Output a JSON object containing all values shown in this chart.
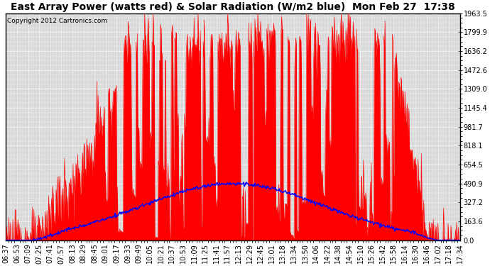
{
  "title": "East Array Power (watts red) & Solar Radiation (W/m2 blue)  Mon Feb 27  17:38",
  "copyright": "Copyright 2012 Cartronics.com",
  "y_ticks": [
    0.0,
    163.6,
    327.2,
    490.9,
    654.5,
    818.1,
    981.7,
    1145.4,
    1309.0,
    1472.6,
    1636.2,
    1799.9,
    1963.5
  ],
  "y_labels": [
    "0.0",
    "163.6",
    "327.2",
    "490.9",
    "654.5",
    "818.1",
    "981.7",
    "1145.4",
    "1309.0",
    "1472.6",
    "1636.2",
    "1799.9",
    "1963.5"
  ],
  "ylim": [
    0,
    1963.5
  ],
  "x_labels": [
    "06:37",
    "06:53",
    "07:09",
    "07:25",
    "07:41",
    "07:57",
    "08:13",
    "08:29",
    "08:45",
    "09:01",
    "09:17",
    "09:33",
    "09:49",
    "10:05",
    "10:21",
    "10:37",
    "10:53",
    "11:09",
    "11:25",
    "11:41",
    "11:57",
    "12:13",
    "12:29",
    "12:45",
    "13:01",
    "13:18",
    "13:34",
    "13:50",
    "14:06",
    "14:22",
    "14:38",
    "14:54",
    "15:10",
    "15:26",
    "15:42",
    "15:58",
    "16:14",
    "16:30",
    "16:46",
    "17:02",
    "17:18",
    "17:34"
  ],
  "bg_color": "#ffffff",
  "plot_bg_color": "#d8d8d8",
  "red_color": "#ff0000",
  "blue_color": "#0000ff",
  "grid_color": "#ffffff",
  "title_fontsize": 10,
  "tick_fontsize": 7,
  "copyright_fontsize": 6.5
}
